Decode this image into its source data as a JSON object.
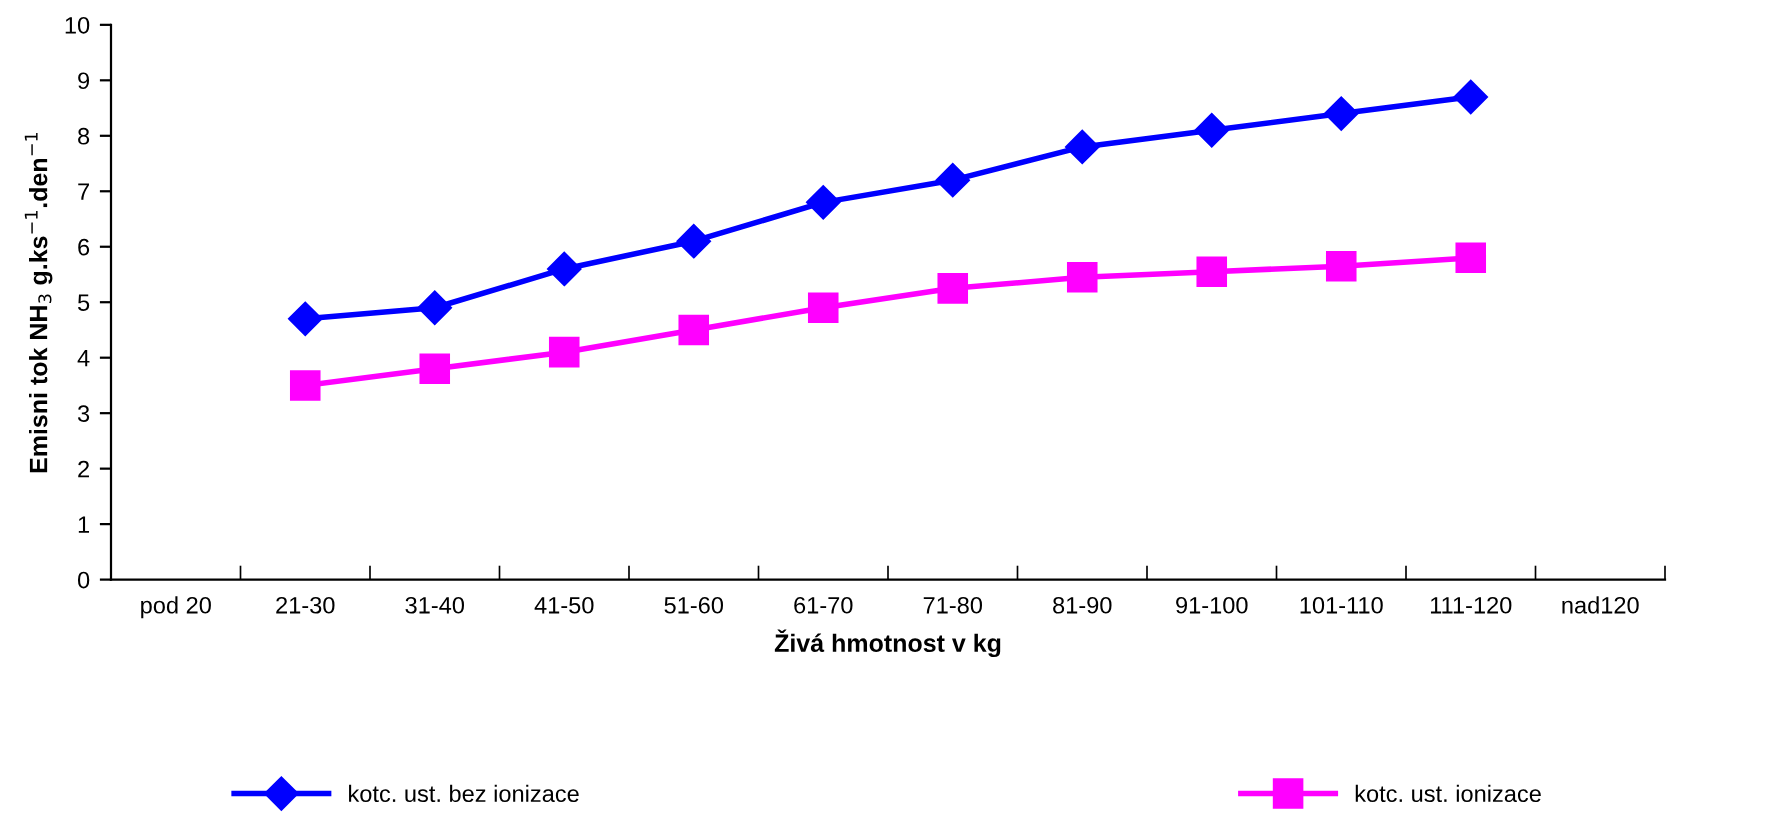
{
  "chart_data": {
    "type": "line",
    "xlabel": "Živá hmotnost v kg",
    "ylabel": "Emisni tok NH$_{3}$ g.ks$^{−1}$.den$^{−1}$",
    "categories": [
      "pod 20",
      "21-30",
      "31-40",
      "41-50",
      "51-60",
      "61-70",
      "71-80",
      "81-90",
      "91-100",
      "101-110",
      "111-120",
      "nad120"
    ],
    "series": [
      {
        "name": "kotc. ust. bez ionizace",
        "color": "#0000ff",
        "marker": "diamond",
        "values": [
          null,
          4.7,
          4.9,
          5.6,
          6.1,
          6.8,
          7.2,
          7.8,
          8.1,
          8.4,
          8.7,
          null
        ]
      },
      {
        "name": "kotc. ust. ionizace",
        "color": "#ff00ff",
        "marker": "square",
        "values": [
          null,
          3.5,
          3.8,
          4.1,
          4.5,
          4.9,
          5.25,
          5.45,
          5.55,
          5.65,
          5.8,
          null
        ]
      }
    ],
    "ylim": [
      0,
      10
    ],
    "yticks": [
      0,
      1,
      2,
      3,
      4,
      5,
      6,
      7,
      8,
      9,
      10
    ],
    "grid": false,
    "legend": "bottom"
  }
}
